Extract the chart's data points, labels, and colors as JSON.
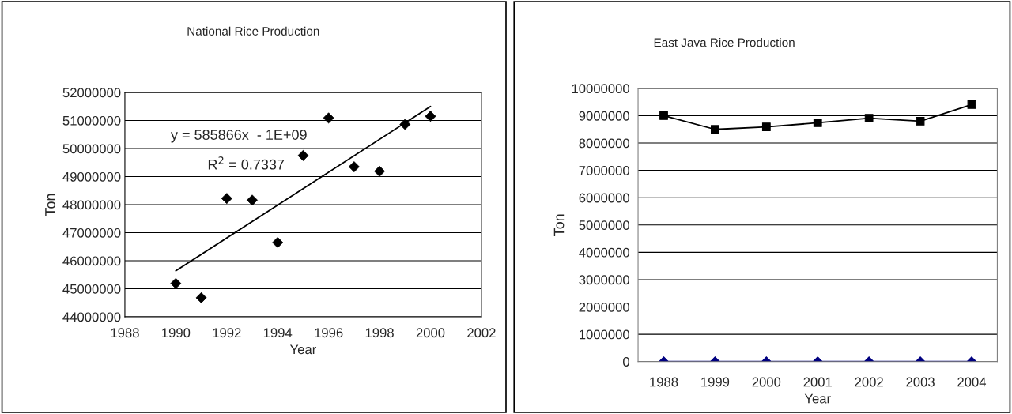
{
  "chart_data": [
    {
      "type": "scatter",
      "title": "National Rice Production",
      "xlabel": "Year",
      "ylabel": "Ton",
      "xlim": [
        1988,
        2002
      ],
      "xticks": [
        1988,
        1990,
        1992,
        1994,
        1996,
        1998,
        2000,
        2002
      ],
      "ylim": [
        44000000,
        52000000
      ],
      "yticks": [
        44000000,
        45000000,
        46000000,
        47000000,
        48000000,
        49000000,
        50000000,
        51000000,
        52000000
      ],
      "grid": "y",
      "legend": false,
      "annotations": [
        "y = 585866x  - 1E+09",
        "R$^{2}$ = 0.7337"
      ],
      "series": [
        {
          "marker": "diamond",
          "color": "#000000",
          "x": [
            1990,
            1991,
            1992,
            1993,
            1994,
            1995,
            1996,
            1997,
            1998,
            1999,
            2000
          ],
          "values": [
            45190000,
            44680000,
            48220000,
            48160000,
            46650000,
            49750000,
            51090000,
            49350000,
            49190000,
            50860000,
            51150000
          ]
        },
        {
          "type": "line",
          "marker": "none",
          "color": "#000000",
          "x": [
            1990,
            2000
          ],
          "values": [
            45640000,
            51500000
          ]
        }
      ]
    },
    {
      "type": "line",
      "title": "East Java Rice Production",
      "xlabel": "Year",
      "ylabel": "Ton",
      "categories": [
        "1988",
        "1999",
        "2000",
        "2001",
        "2002",
        "2003",
        "2004"
      ],
      "ylim": [
        0,
        10000000
      ],
      "yticks": [
        0,
        1000000,
        2000000,
        3000000,
        4000000,
        5000000,
        6000000,
        7000000,
        8000000,
        9000000,
        10000000
      ],
      "grid": "y",
      "legend": false,
      "series": [
        {
          "marker": "square",
          "color": "#000000",
          "values": [
            9000000,
            8500000,
            8590000,
            8740000,
            8910000,
            8800000,
            9410000
          ]
        },
        {
          "marker": "diamond",
          "color": "#000080",
          "values": [
            0,
            0,
            0,
            0,
            0,
            0,
            0
          ]
        }
      ]
    }
  ]
}
